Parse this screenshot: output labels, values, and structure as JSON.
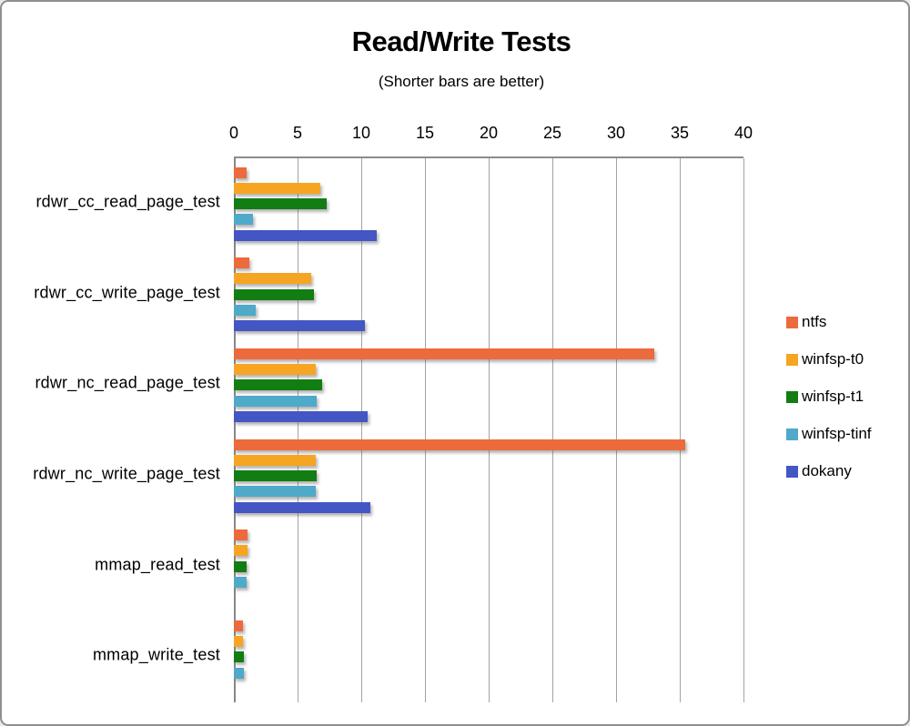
{
  "window": {
    "background": "#ffffff",
    "border_color": "#8f8f8f"
  },
  "chart_data": {
    "type": "bar",
    "orientation": "horizontal",
    "title": "Read/Write Tests",
    "subtitle": "(Shorter bars are better)",
    "xlabel": "",
    "ylabel": "",
    "xlim": [
      0,
      40
    ],
    "x_ticks": [
      0,
      5,
      10,
      15,
      20,
      25,
      30,
      35,
      40
    ],
    "grid": true,
    "legend_position": "right",
    "categories": [
      "rdwr_cc_read_page_test",
      "rdwr_cc_write_page_test",
      "rdwr_nc_read_page_test",
      "rdwr_nc_write_page_test",
      "mmap_read_test",
      "mmap_write_test"
    ],
    "series": [
      {
        "name": "ntfs",
        "color": "#ED6A3C",
        "values": [
          1.0,
          1.2,
          33.0,
          35.4,
          1.1,
          0.7
        ]
      },
      {
        "name": "winfsp-t0",
        "color": "#F6A522",
        "values": [
          6.8,
          6.1,
          6.4,
          6.4,
          1.1,
          0.7
        ]
      },
      {
        "name": "winfsp-t1",
        "color": "#127D12",
        "values": [
          7.3,
          6.3,
          6.9,
          6.5,
          1.0,
          0.8
        ]
      },
      {
        "name": "winfsp-tinf",
        "color": "#4FA9C9",
        "values": [
          1.5,
          1.7,
          6.5,
          6.4,
          1.0,
          0.8
        ]
      },
      {
        "name": "dokany",
        "color": "#4456C3",
        "values": [
          11.2,
          10.3,
          10.5,
          10.7,
          0,
          0
        ]
      }
    ],
    "colors": {
      "gridline": "#a3a3a3",
      "axis": "#878787",
      "text": "#000000"
    }
  }
}
